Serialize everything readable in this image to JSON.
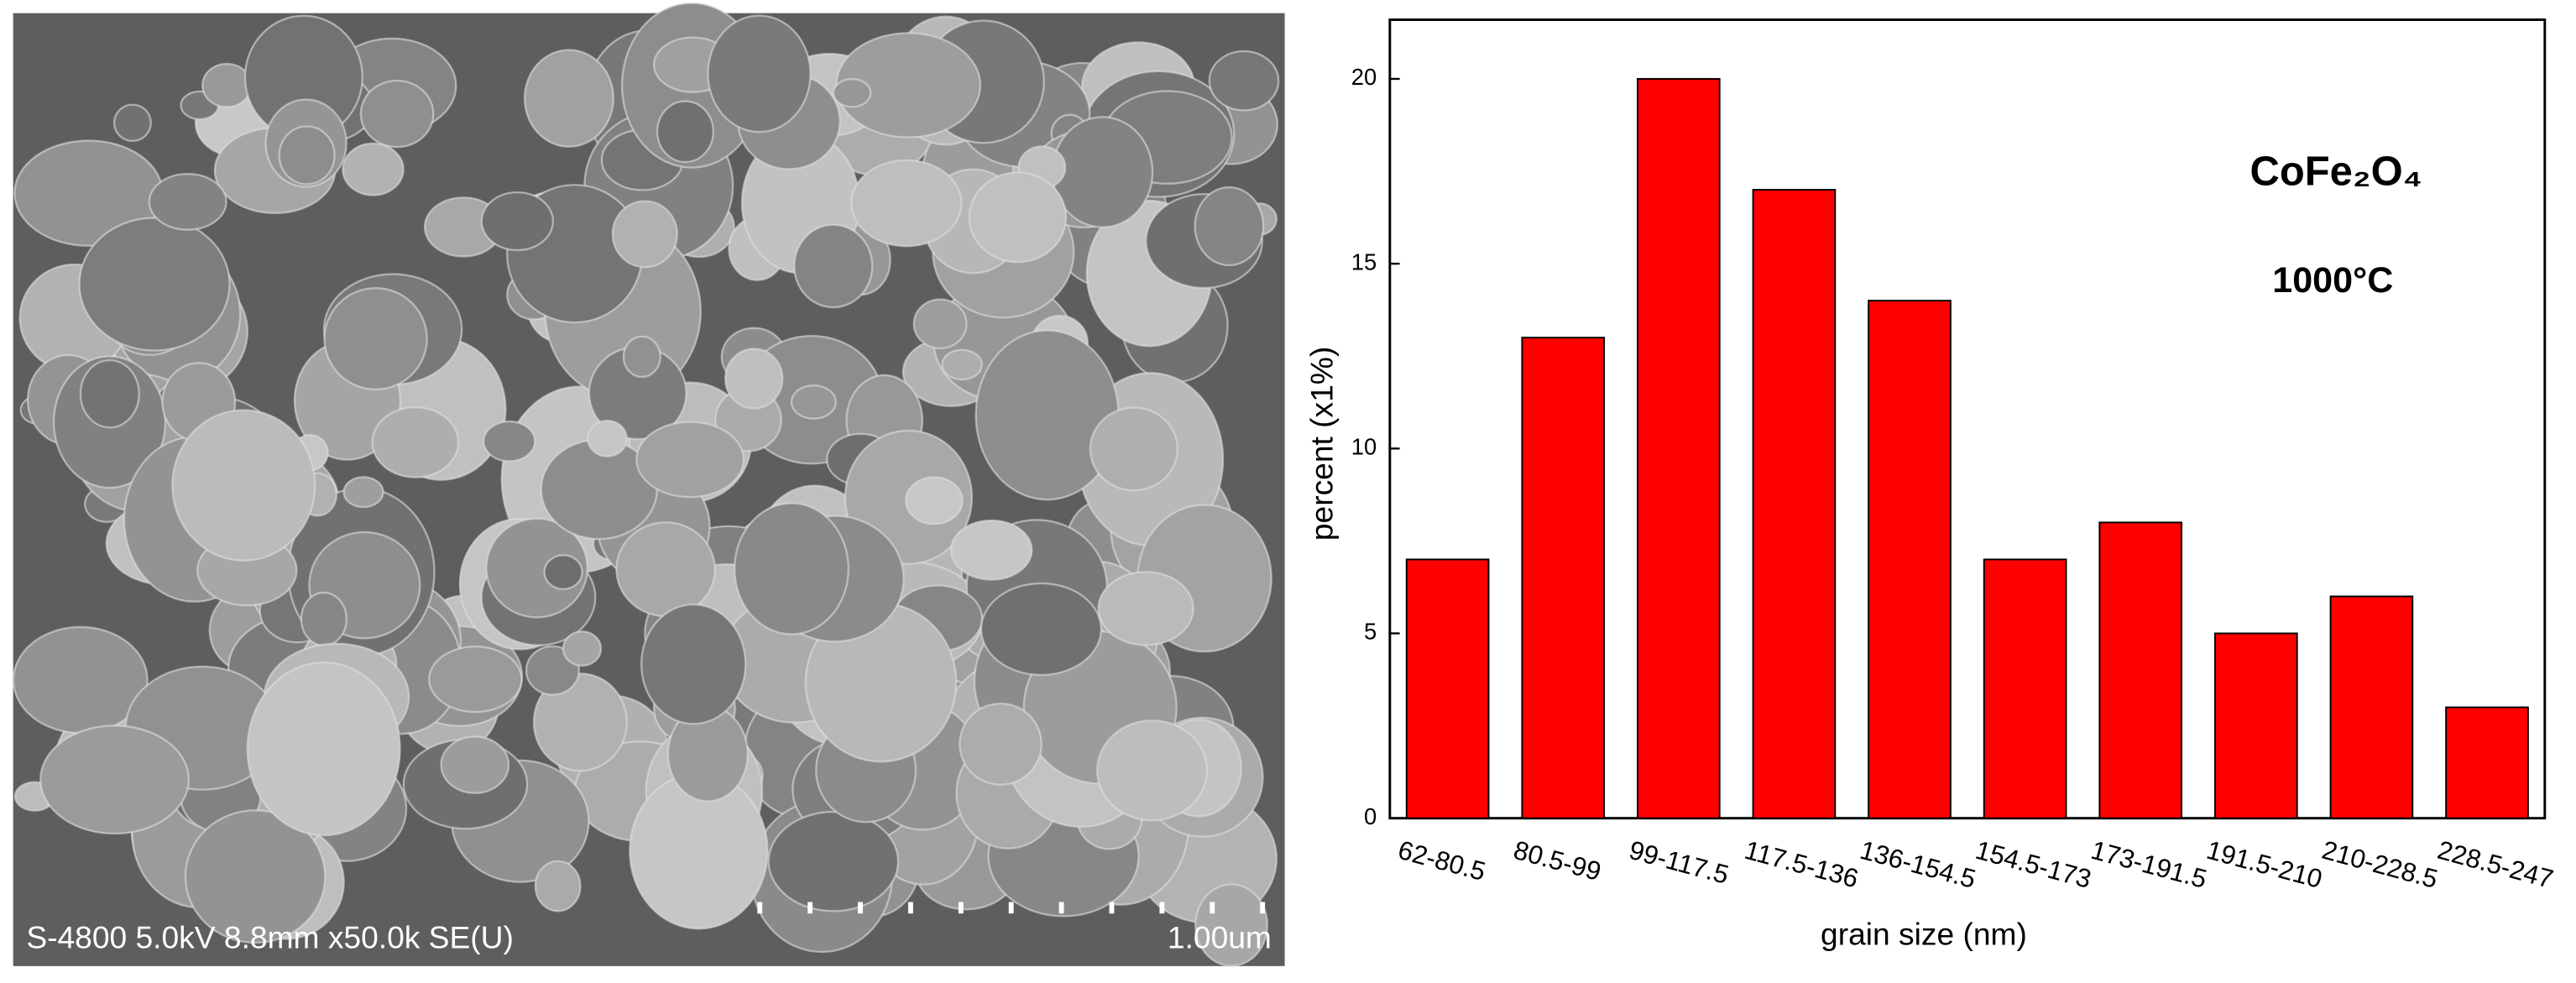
{
  "micrograph": {
    "caption": "S-4800 5.0kV 8.8mm x50.0k SE(U)",
    "scale_label": "1.00um"
  },
  "chart_data": {
    "type": "bar",
    "categories": [
      "62-80.5",
      "80.5-99",
      "99-117.5",
      "117.5-136",
      "136-154.5",
      "154.5-173",
      "173-191.5",
      "191.5-210",
      "210-228.5",
      "228.5-247"
    ],
    "values": [
      7,
      13,
      20,
      17,
      14,
      7,
      8,
      5,
      6,
      3
    ],
    "color": "#ff0000",
    "x_label": "grain size (nm)",
    "y_label": "percent  (x1%)",
    "annotations": [
      "CoFe₂O₄",
      "1000°C"
    ],
    "ylim": [
      0,
      21.6
    ],
    "yticks": [
      0,
      5,
      10,
      15,
      20
    ],
    "grid": false
  }
}
